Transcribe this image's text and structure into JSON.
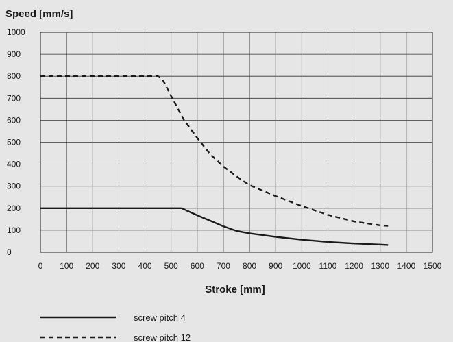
{
  "chart_data": {
    "type": "line",
    "ylabel": "Speed [mm/s]",
    "xlabel": "Stroke [mm]",
    "xlim": [
      0,
      1500
    ],
    "ylim": [
      0,
      1000
    ],
    "xticks": [
      0,
      100,
      200,
      300,
      400,
      500,
      600,
      700,
      800,
      900,
      1000,
      1100,
      1200,
      1300,
      1400,
      1500
    ],
    "yticks": [
      0,
      100,
      200,
      300,
      400,
      500,
      600,
      700,
      800,
      900,
      1000
    ],
    "grid": true,
    "legend_position": "bottom-left",
    "series": [
      {
        "name": "screw pitch 4",
        "style": "solid",
        "color": "#1a1a1a",
        "x": [
          0,
          100,
          200,
          300,
          400,
          500,
          540,
          600,
          650,
          700,
          750,
          800,
          900,
          1000,
          1100,
          1200,
          1300,
          1330
        ],
        "y": [
          200,
          200,
          200,
          200,
          200,
          200,
          200,
          168,
          143,
          118,
          97,
          86,
          70,
          57,
          47,
          40,
          35,
          33
        ]
      },
      {
        "name": "screw pitch 12",
        "style": "dashed",
        "color": "#1a1a1a",
        "x": [
          0,
          100,
          200,
          300,
          400,
          450,
          470,
          500,
          550,
          600,
          650,
          700,
          750,
          800,
          900,
          1000,
          1100,
          1200,
          1300,
          1330
        ],
        "y": [
          800,
          800,
          800,
          800,
          800,
          800,
          780,
          710,
          600,
          520,
          445,
          390,
          345,
          305,
          255,
          210,
          170,
          140,
          122,
          120
        ]
      }
    ]
  }
}
